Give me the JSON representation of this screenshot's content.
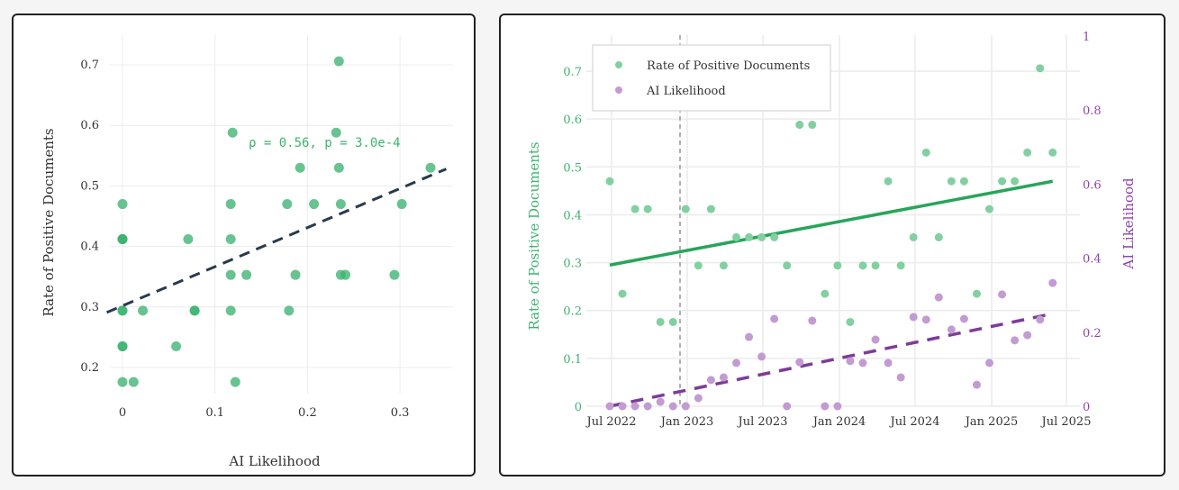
{
  "chart_data": [
    {
      "type": "scatter",
      "title": "",
      "xlabel": "AI Likelihood",
      "ylabel": "Rate of Positive Documents",
      "xlim": [
        -0.02,
        0.36
      ],
      "ylim": [
        0.14,
        0.75
      ],
      "xticks": [
        "0",
        "0.1",
        "0.2",
        "0.3"
      ],
      "xtick_values": [
        0,
        0.1,
        0.2,
        0.3
      ],
      "yticks": [
        "0.2",
        "0.3",
        "0.4",
        "0.5",
        "0.6",
        "0.7"
      ],
      "ytick_values": [
        0.2,
        0.3,
        0.4,
        0.5,
        0.6,
        0.7
      ],
      "grid": true,
      "annotation": "ρ = 0.56, p = 3.0e-4",
      "trendline": {
        "style": "dashed",
        "x": [
          -0.017,
          0.35
        ],
        "y": [
          0.291,
          0.528
        ]
      },
      "colors": {
        "points": "#3cb371",
        "trend": "#2a3a4e",
        "annotation": "#3cb371"
      }
    },
    {
      "type": "scatter",
      "title": "",
      "xlabel": "",
      "ylabel": "Rate of Positive Documents",
      "y2label": "AI Likelihood",
      "xticks": [
        "Jul 2022",
        "Jan 2023",
        "Jul 2023",
        "Jan 2024",
        "Jul 2024",
        "Jan 2025",
        "Jul 2025"
      ],
      "ylim": [
        0,
        0.77
      ],
      "y2lim": [
        0,
        1
      ],
      "yticks": [
        "0",
        "0.1",
        "0.2",
        "0.3",
        "0.4",
        "0.5",
        "0.6",
        "0.7"
      ],
      "y2ticks": [
        "0",
        "0.2",
        "0.4",
        "0.6",
        "0.8",
        "1"
      ],
      "grid": true,
      "legend": {
        "position": "top-left",
        "entries": [
          "Rate of Positive Documents",
          "AI Likelihood"
        ]
      },
      "vline": {
        "x": "Dec 2022",
        "style": "dotted"
      },
      "x_months": [
        "2022-06",
        "2022-07",
        "2022-08",
        "2022-09",
        "2022-10",
        "2022-11",
        "2022-12",
        "2023-01",
        "2023-02",
        "2023-03",
        "2023-04",
        "2023-05",
        "2023-06",
        "2023-07",
        "2023-08",
        "2023-09",
        "2023-10",
        "2023-11",
        "2023-12",
        "2024-01",
        "2024-02",
        "2024-03",
        "2024-04",
        "2024-05",
        "2024-06",
        "2024-07",
        "2024-08",
        "2024-09",
        "2024-10",
        "2024-11",
        "2024-12",
        "2025-01",
        "2025-02",
        "2025-03",
        "2025-04",
        "2025-05"
      ],
      "series": [
        {
          "name": "Rate of Positive Documents",
          "axis": "left",
          "color": "#3cb371",
          "values": [
            0.47,
            0.235,
            0.412,
            0.412,
            0.176,
            0.176,
            0.412,
            0.294,
            0.412,
            0.294,
            0.353,
            0.353,
            0.353,
            0.353,
            0.294,
            0.588,
            0.588,
            0.235,
            0.294,
            0.176,
            0.294,
            0.294,
            0.47,
            0.294,
            0.353,
            0.53,
            0.353,
            0.47,
            0.47,
            0.235,
            0.412,
            0.47,
            0.47,
            0.53,
            0.706,
            0.53
          ],
          "trend": {
            "style": "solid",
            "start": 0.295,
            "end": 0.47
          }
        },
        {
          "name": "AI Likelihood",
          "axis": "right",
          "color": "#9b59b6",
          "values": [
            0,
            0,
            0,
            0,
            0.012,
            0,
            0,
            0.022,
            0.071,
            0.078,
            0.117,
            0.187,
            0.134,
            0.236,
            0,
            0.119,
            0.231,
            0,
            0,
            0.122,
            0.117,
            0.18,
            0.117,
            0.078,
            0.241,
            0.234,
            0.294,
            0.207,
            0.236,
            0.058,
            0.117,
            0.302,
            0.178,
            0.192,
            0.234,
            0.333
          ],
          "trend": {
            "style": "dashed",
            "start": 0.0,
            "end": 0.25
          }
        }
      ]
    }
  ]
}
